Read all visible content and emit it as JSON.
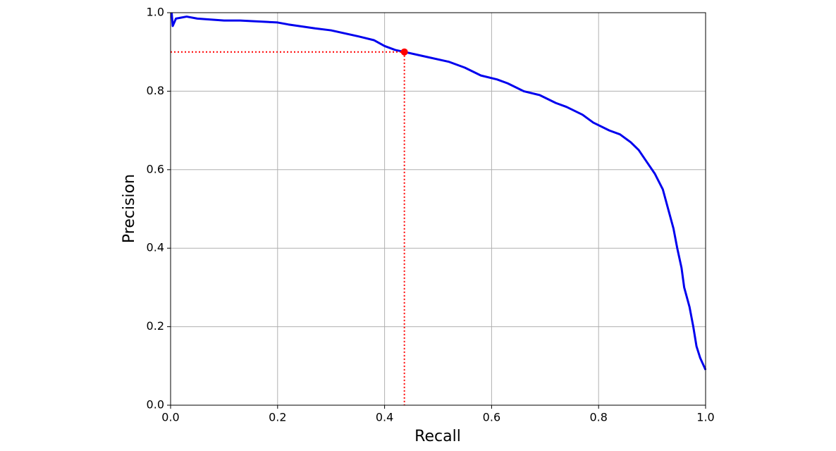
{
  "chart_data": {
    "type": "line",
    "xlabel": "Recall",
    "ylabel": "Precision",
    "xlim": [
      0,
      1
    ],
    "ylim": [
      0,
      1
    ],
    "xticks": [
      {
        "value": 0,
        "label": "0.0"
      },
      0.2,
      0.4,
      0.6,
      0.8,
      {
        "value": 1,
        "label": "1.0"
      }
    ],
    "yticks": [
      {
        "value": 0,
        "label": "0.0"
      },
      0.2,
      0.4,
      0.6,
      0.8,
      {
        "value": 1,
        "label": "1.0"
      }
    ],
    "grid": true,
    "series": [
      {
        "color": "#0000ee",
        "x": [
          0.002,
          0.004,
          0.01,
          0.03,
          0.05,
          0.1,
          0.13,
          0.2,
          0.22,
          0.27,
          0.3,
          0.35,
          0.38,
          0.4,
          0.42,
          0.437,
          0.47,
          0.52,
          0.55,
          0.58,
          0.61,
          0.63,
          0.66,
          0.69,
          0.72,
          0.74,
          0.77,
          0.79,
          0.82,
          0.84,
          0.86,
          0.875,
          0.89,
          0.905,
          0.92,
          0.93,
          0.94,
          0.947,
          0.955,
          0.96,
          0.97,
          0.977,
          0.983,
          0.99,
          1.0
        ],
        "values": [
          1.0,
          0.966,
          0.985,
          0.99,
          0.985,
          0.98,
          0.98,
          0.975,
          0.97,
          0.96,
          0.955,
          0.94,
          0.93,
          0.915,
          0.905,
          0.9,
          0.89,
          0.875,
          0.86,
          0.84,
          0.83,
          0.82,
          0.8,
          0.79,
          0.77,
          0.76,
          0.74,
          0.72,
          0.7,
          0.69,
          0.67,
          0.65,
          0.62,
          0.59,
          0.55,
          0.5,
          0.45,
          0.4,
          0.35,
          0.3,
          0.25,
          0.2,
          0.15,
          0.12,
          0.09
        ]
      }
    ],
    "marker": {
      "x": 0.437,
      "y": 0.9,
      "color": "#ff0000"
    }
  }
}
